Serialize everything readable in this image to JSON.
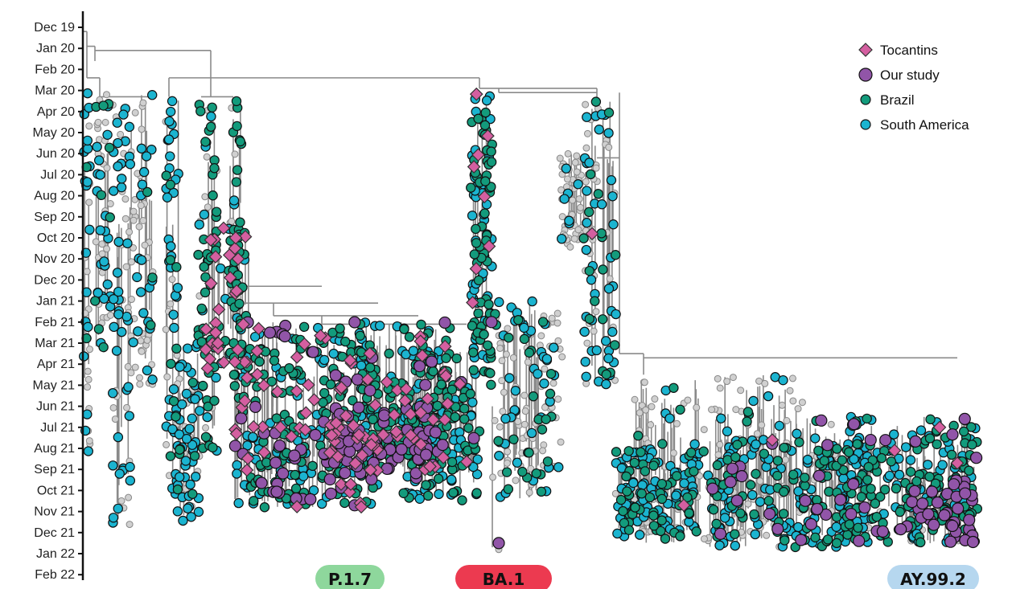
{
  "chart_data": {
    "type": "scatter",
    "title": "",
    "xlabel": "",
    "ylabel": "",
    "y_axis": {
      "ticks": [
        "Dec 19",
        "Jan 20",
        "Feb 20",
        "Mar 20",
        "Apr 20",
        "May 20",
        "Jun 20",
        "Jul 20",
        "Aug 20",
        "Sep 20",
        "Oct 20",
        "Nov 20",
        "Dec 20",
        "Jan 21",
        "Feb 21",
        "Mar 21",
        "Apr 21",
        "May 21",
        "Jun 21",
        "Jul 21",
        "Aug 21",
        "Sep 21",
        "Oct 21",
        "Nov 21",
        "Dec 21",
        "Jan 22",
        "Feb 22"
      ],
      "orientation": "time increases downward"
    },
    "legend": {
      "placement": "top-right",
      "entries": [
        {
          "label": "Tocantins",
          "marker": "diamond",
          "color": "#d45fa0"
        },
        {
          "label": "Our study",
          "marker": "circle",
          "color": "#9155a8"
        },
        {
          "label": "Brazil",
          "marker": "circle",
          "color": "#139b7c"
        },
        {
          "label": "South America",
          "marker": "circle",
          "color": "#1bb4d0"
        }
      ]
    },
    "background_sample_color": "#d0d0d0",
    "branch_color": "#8a8a8a",
    "clades": [
      {
        "label": "P.1.7",
        "color": "#8ed79c"
      },
      {
        "label": "BA.1",
        "color": "#ec3a50"
      },
      {
        "label": "AY.99.2",
        "color": "#b6d7ef"
      }
    ]
  }
}
